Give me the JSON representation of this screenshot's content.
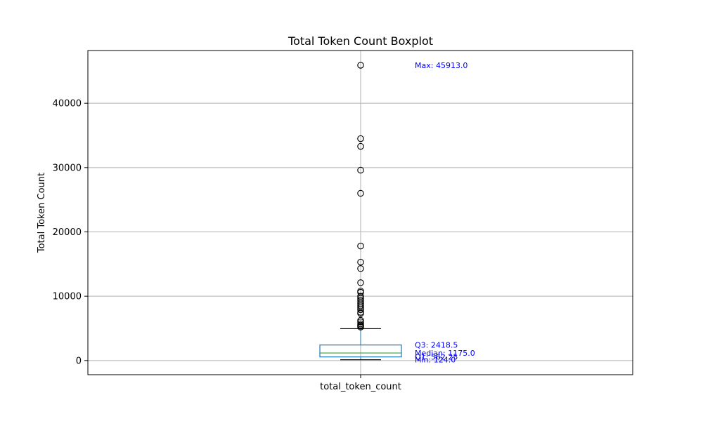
{
  "chart_data": {
    "type": "boxplot",
    "title": "Total Token Count Boxplot",
    "ylabel": "Total Token Count",
    "xlabel": "",
    "ylim": [
      -2200,
      48200
    ],
    "yticks": [
      0,
      10000,
      20000,
      30000,
      40000
    ],
    "grid": true,
    "category": "total_token_count",
    "stats": {
      "min": 124.0,
      "q1": 562.25,
      "median": 1175.0,
      "q3": 2418.5,
      "whisker_low": 124.0,
      "whisker_high": 4950.0,
      "max": 45913.0
    },
    "outliers": [
      5200,
      5350,
      5500,
      5700,
      6000,
      6250,
      7300,
      7500,
      7900,
      8200,
      8500,
      8800,
      9100,
      9400,
      9700,
      10000,
      10600,
      10800,
      12100,
      14300,
      15300,
      17800,
      26000,
      29600,
      33300,
      34500,
      45913
    ],
    "annotations": [
      {
        "key": "max",
        "text": "Max: 45913.0",
        "y": 45913.0
      },
      {
        "key": "q3",
        "text": "Q3: 2418.5",
        "y": 2418.5
      },
      {
        "key": "median",
        "text": "Median: 1175.0",
        "y": 1175.0
      },
      {
        "key": "q1",
        "text": "Q1: 562.25",
        "y": 562.25
      },
      {
        "key": "min",
        "text": "Min: 124.0",
        "y": 124.0
      }
    ],
    "colors": {
      "box": "#1f77b4",
      "median": "#2ca02c",
      "whisker_cap": "#000000",
      "outlier": "#000000",
      "annotation": "#0000ff",
      "grid": "#b0b0b0"
    }
  }
}
